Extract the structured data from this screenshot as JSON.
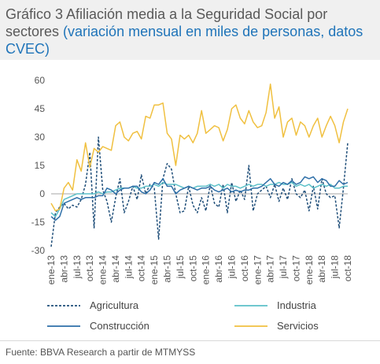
{
  "header": {
    "title_main": "Gráfico 3 Afiliación media a la Seguridad Social por sectores",
    "title_sub": "(variación mensual en miles de personas, datos CVEC)"
  },
  "footer": {
    "source": "Fuente: BBVA Research a partir de MTMYSS"
  },
  "chart_data": {
    "type": "line",
    "title": "",
    "xlabel": "",
    "ylabel": "",
    "ylim": [
      -30,
      60
    ],
    "yticks": [
      -30,
      -15,
      0,
      15,
      30,
      45,
      60
    ],
    "grid": false,
    "legend_position": "bottom",
    "x": [
      "ene-13",
      "feb-13",
      "mar-13",
      "abr-13",
      "may-13",
      "jun-13",
      "jul-13",
      "ago-13",
      "sep-13",
      "oct-13",
      "nov-13",
      "dic-13",
      "ene-14",
      "feb-14",
      "mar-14",
      "abr-14",
      "may-14",
      "jun-14",
      "jul-14",
      "ago-14",
      "sep-14",
      "oct-14",
      "nov-14",
      "dic-14",
      "ene-15",
      "feb-15",
      "mar-15",
      "abr-15",
      "may-15",
      "jun-15",
      "jul-15",
      "ago-15",
      "sep-15",
      "oct-15",
      "nov-15",
      "dic-15",
      "ene-16",
      "feb-16",
      "mar-16",
      "abr-16",
      "may-16",
      "jun-16",
      "jul-16",
      "ago-16",
      "sep-16",
      "oct-16",
      "nov-16",
      "dic-16",
      "ene-17",
      "feb-17",
      "mar-17",
      "abr-17",
      "may-17",
      "jun-17",
      "jul-17",
      "ago-17",
      "sep-17",
      "oct-17",
      "nov-17",
      "dic-17",
      "ene-18",
      "feb-18",
      "mar-18",
      "abr-18",
      "may-18",
      "jun-18",
      "jul-18",
      "ago-18",
      "sep-18",
      "oct-18"
    ],
    "x_tick_labels": [
      "ene-13",
      "abr-13",
      "jul-13",
      "oct-13",
      "ene-14",
      "abr-14",
      "jul-14",
      "oct-14",
      "ene-15",
      "abr-15",
      "jul-15",
      "oct-15",
      "ene-16",
      "abr-16",
      "jul-16",
      "oct-16",
      "ene-17",
      "abr-17",
      "jul-17",
      "oct-17",
      "ene-18",
      "abr-18",
      "jul-18",
      "oct-18"
    ],
    "series": [
      {
        "name": "Agricultura",
        "color": "#1f4e79",
        "style": "dashed",
        "values": [
          -28,
          -10,
          -7,
          -5,
          -8,
          -6,
          -7,
          -3,
          5,
          22,
          -18,
          30,
          2,
          -4,
          -15,
          -2,
          8,
          -10,
          -4,
          4,
          -3,
          10,
          0,
          5,
          3,
          -24,
          8,
          16,
          13,
          0,
          -10,
          -9,
          4,
          -6,
          -10,
          -2,
          -9,
          5,
          -5,
          -7,
          5,
          -10,
          6,
          -4,
          2,
          -3,
          15,
          -9,
          0,
          2,
          4,
          -2,
          5,
          -4,
          3,
          -3,
          8,
          0,
          -2,
          2,
          -9,
          4,
          -8,
          8,
          0,
          -2,
          -1,
          -18,
          3,
          27
        ]
      },
      {
        "name": "Industria",
        "color": "#5bc0c8",
        "style": "solid",
        "values": [
          -10,
          -12,
          -8,
          -3,
          -2,
          -1,
          0,
          0,
          0,
          0,
          0,
          1,
          0,
          1,
          1,
          2,
          3,
          3,
          3,
          4,
          3,
          3,
          4,
          4,
          5,
          4,
          6,
          5,
          5,
          5,
          4,
          3,
          4,
          3,
          4,
          4,
          4,
          5,
          4,
          5,
          3,
          5,
          4,
          4,
          3,
          4,
          5,
          4,
          5,
          5,
          4,
          5,
          5,
          6,
          5,
          5,
          6,
          4,
          5,
          4,
          5,
          3,
          4,
          5,
          4,
          5,
          3,
          3,
          4,
          4
        ]
      },
      {
        "name": "Construcción",
        "color": "#2e6fa8",
        "style": "solid",
        "values": [
          -12,
          -14,
          -12,
          -5,
          -4,
          -3,
          -2,
          -3,
          -2,
          -2,
          -2,
          -1,
          -1,
          3,
          2,
          0,
          2,
          3,
          3,
          4,
          4,
          1,
          0,
          2,
          6,
          5,
          8,
          4,
          4,
          0,
          2,
          3,
          4,
          3,
          2,
          3,
          3,
          4,
          2,
          1,
          2,
          3,
          1,
          2,
          1,
          2,
          2,
          3,
          3,
          4,
          6,
          8,
          5,
          4,
          6,
          5,
          7,
          5,
          6,
          9,
          8,
          9,
          6,
          8,
          7,
          4,
          4,
          7,
          5,
          6
        ]
      },
      {
        "name": "Servicios",
        "color": "#f0c040",
        "style": "solid",
        "values": [
          -5,
          -9,
          -8,
          3,
          6,
          2,
          18,
          12,
          27,
          14,
          24,
          22,
          25,
          24,
          23,
          36,
          38,
          30,
          28,
          32,
          33,
          29,
          41,
          40,
          47,
          47,
          48,
          32,
          29,
          15,
          31,
          29,
          31,
          27,
          32,
          44,
          32,
          34,
          36,
          35,
          28,
          34,
          45,
          47,
          40,
          37,
          44,
          38,
          35,
          36,
          43,
          58,
          40,
          46,
          30,
          38,
          40,
          31,
          38,
          36,
          30,
          36,
          40,
          30,
          36,
          41,
          36,
          27,
          38,
          45
        ]
      }
    ]
  }
}
